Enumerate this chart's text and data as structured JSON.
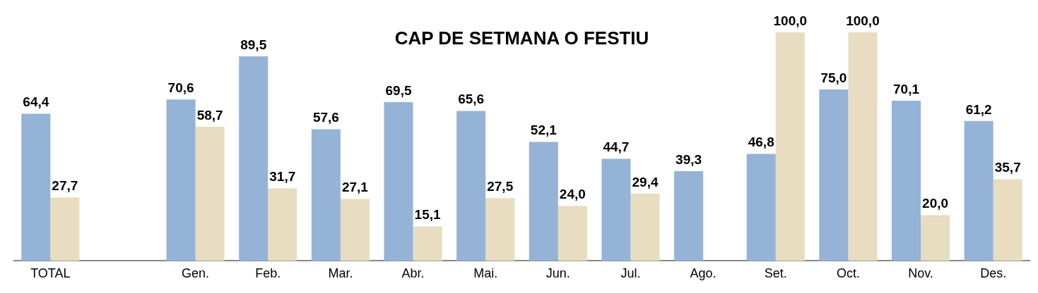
{
  "chart_data": {
    "type": "bar",
    "title": "CAP DE SETMANA O FESTIU",
    "categories": [
      "TOTAL",
      null,
      "Gen.",
      "Feb.",
      "Mar.",
      "Abr.",
      "Mai.",
      "Jun.",
      "Jul.",
      "Ago.",
      "Set.",
      "Oct.",
      "Nov.",
      "Des."
    ],
    "series": [
      {
        "color": "#95b3d7",
        "values": [
          64.4,
          null,
          70.6,
          89.5,
          57.6,
          69.5,
          65.6,
          52.1,
          44.7,
          39.3,
          46.8,
          75.0,
          70.1,
          61.2
        ],
        "value_labels": [
          "64,4",
          null,
          "70,6",
          "89,5",
          "57,6",
          "69,5",
          "65,6",
          "52,1",
          "44,7",
          "39,3",
          "46,8",
          "75,0",
          "70,1",
          "61,2"
        ]
      },
      {
        "color": "#e8dcc1",
        "values": [
          27.7,
          null,
          58.7,
          31.7,
          27.1,
          15.1,
          27.5,
          24.0,
          29.4,
          null,
          100.0,
          100.0,
          20.0,
          35.7
        ],
        "value_labels": [
          "27,7",
          null,
          "58,7",
          "31,7",
          "27,1",
          "15,1",
          "27,5",
          "24,0",
          "29,4",
          null,
          "100,0",
          "100,0",
          "20,0",
          "35,7"
        ]
      }
    ],
    "grid": false,
    "legend": false
  }
}
